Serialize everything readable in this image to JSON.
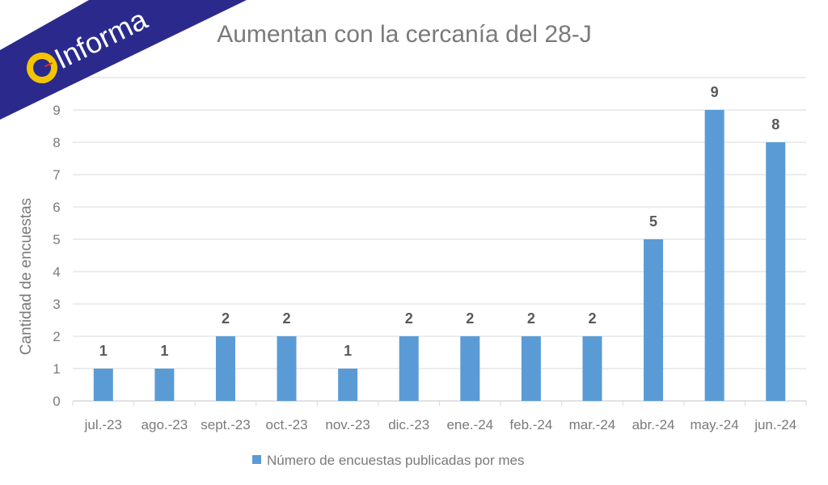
{
  "logo": {
    "text": "Informa",
    "colors": {
      "band": "#2b2a8c",
      "circle": "#f2c500",
      "text": "#ffffff"
    }
  },
  "chart_data": {
    "type": "bar",
    "title": "Aumentan con la cercanía del 28-J",
    "xlabel": "",
    "ylabel": "Cantidad de encuestas",
    "ylim": [
      0,
      10
    ],
    "yticks": [
      "0",
      "1",
      "2",
      "3",
      "4",
      "5",
      "6",
      "7",
      "8",
      "9"
    ],
    "grid": true,
    "legend_position": "bottom",
    "categories": [
      "jul.-23",
      "ago.-23",
      "sept.-23",
      "oct.-23",
      "nov.-23",
      "dic.-23",
      "ene.-24",
      "feb.-24",
      "mar.-24",
      "abr.-24",
      "may.-24",
      "jun.-24"
    ],
    "series": [
      {
        "name": "Número de encuestas publicadas por mes",
        "color": "#5b9bd5",
        "values": [
          1,
          1,
          2,
          2,
          1,
          2,
          2,
          2,
          2,
          5,
          9,
          8
        ]
      }
    ]
  }
}
